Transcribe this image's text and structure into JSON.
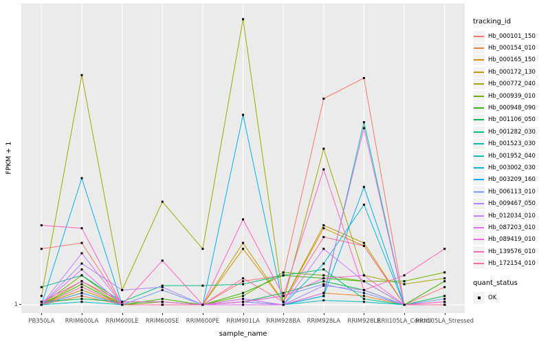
{
  "figure": {
    "y_axis_title": "FPKM + 1",
    "x_axis_title": "sample_name",
    "y_tick_label": "1",
    "legend_tracking_title": "tracking_id",
    "legend_quant_title": "quant_status",
    "quant_ok_label": "OK",
    "colors": {
      "panel_bg": "#EBEBEB",
      "gridline": "#FFFFFF",
      "tick_text": "#4D4D4D",
      "legend_key_bg": "#F2F2F2",
      "point_marker": "#000000"
    }
  },
  "chart_data": {
    "type": "line",
    "title": "",
    "xlabel": "sample_name",
    "ylabel": "FPKM + 1",
    "grid": true,
    "legend_position": "right",
    "point_marker": "filled black square (quant_status = OK at every point)",
    "y_axis_note": "log-like axis; only tick shown is '1' at the baseline; values stored as relative height 0-1 of panel",
    "y_tick_labels": [
      "1"
    ],
    "categories": [
      "PB350LA",
      "RRIM600LA",
      "RRIM600LE",
      "RRIM600SE",
      "RRIM600PE",
      "RRIM901LA",
      "RRIM928BA",
      "RRIM928LA",
      "RRIM928LE",
      "RRII105LA_Control",
      "RRII105LA_Stressed"
    ],
    "series": [
      {
        "name": "Hb_000101_150",
        "color": "#F8766D",
        "values": [
          0.19,
          0.21,
          0.0,
          0.0,
          0.0,
          0.08,
          0.1,
          0.7,
          0.77,
          0.0,
          0.06
        ]
      },
      {
        "name": "Hb_000154_010",
        "color": "#EA8331",
        "values": [
          0.0,
          0.03,
          0.0,
          0.0,
          0.0,
          0.02,
          0.0,
          0.04,
          0.03,
          0.0,
          0.01
        ]
      },
      {
        "name": "Hb_000165_150",
        "color": "#D89000",
        "values": [
          0.0,
          0.05,
          0.0,
          0.0,
          0.0,
          0.19,
          0.01,
          0.26,
          0.2,
          0.0,
          0.0
        ]
      },
      {
        "name": "Hb_000172_130",
        "color": "#C09B00",
        "values": [
          0.0,
          0.08,
          0.0,
          0.0,
          0.0,
          0.21,
          0.01,
          0.27,
          0.21,
          0.0,
          0.0
        ]
      },
      {
        "name": "Hb_000772_040",
        "color": "#A3A500",
        "values": [
          0.03,
          0.78,
          0.05,
          0.35,
          0.19,
          0.97,
          0.01,
          0.53,
          0.1,
          0.07,
          0.09
        ]
      },
      {
        "name": "Hb_000939_010",
        "color": "#6BB100",
        "values": [
          0.0,
          0.1,
          0.0,
          0.01,
          0.0,
          0.03,
          0.11,
          0.1,
          0.08,
          0.08,
          0.11
        ]
      },
      {
        "name": "Hb_000948_090",
        "color": "#39B600",
        "values": [
          0.0,
          0.07,
          0.0,
          0.02,
          0.0,
          0.04,
          0.1,
          0.09,
          0.08,
          0.0,
          0.08
        ]
      },
      {
        "name": "Hb_001106_050",
        "color": "#00BB4E",
        "values": [
          0.01,
          0.02,
          0.01,
          0.01,
          0.0,
          0.01,
          0.04,
          0.08,
          0.05,
          0.0,
          0.03
        ]
      },
      {
        "name": "Hb_001282_030",
        "color": "#00BF7D",
        "values": [
          0.06,
          0.1,
          0.01,
          0.065,
          0.065,
          0.07,
          0.1,
          0.12,
          0.02,
          0.0,
          0.0
        ]
      },
      {
        "name": "Hb_001523_030",
        "color": "#00C1A3",
        "values": [
          0.0,
          0.04,
          0.0,
          0.0,
          0.0,
          0.01,
          0.0,
          0.03,
          0.62,
          0.0,
          0.0
        ]
      },
      {
        "name": "Hb_001952_040",
        "color": "#00C0C2",
        "values": [
          0.0,
          0.01,
          0.0,
          0.0,
          0.0,
          0.0,
          0.0,
          0.015,
          0.01,
          0.0,
          0.0
        ]
      },
      {
        "name": "Hb_003002_030",
        "color": "#00BADE",
        "values": [
          0.0,
          0.04,
          0.0,
          0.0,
          0.0,
          0.01,
          0.0,
          0.14,
          0.34,
          0.0,
          0.0
        ]
      },
      {
        "name": "Hb_003209_160",
        "color": "#00B0F6",
        "values": [
          0.0,
          0.43,
          0.0,
          0.0,
          0.0,
          0.645,
          0.0,
          0.03,
          0.4,
          0.0,
          0.0
        ]
      },
      {
        "name": "Hb_006113_010",
        "color": "#7997FF",
        "values": [
          0.0,
          0.04,
          0.0,
          0.05,
          0.0,
          0.01,
          0.03,
          0.07,
          0.04,
          0.0,
          0.02
        ]
      },
      {
        "name": "Hb_009467_050",
        "color": "#AE87FF",
        "values": [
          0.0,
          0.14,
          0.05,
          0.06,
          0.0,
          0.01,
          0.0,
          0.065,
          0.05,
          0.0,
          0.0
        ]
      },
      {
        "name": "Hb_012034_010",
        "color": "#C77CFF",
        "values": [
          0.0,
          0.175,
          0.0,
          0.0,
          0.0,
          0.02,
          0.0,
          0.19,
          0.08,
          0.0,
          0.0
        ]
      },
      {
        "name": "Hb_087203_010",
        "color": "#E76BF3",
        "values": [
          0.0,
          0.12,
          0.0,
          0.0,
          0.0,
          0.0,
          0.0,
          0.04,
          0.6,
          0.0,
          0.0
        ]
      },
      {
        "name": "Hb_089419_010",
        "color": "#FA62DB",
        "values": [
          0.01,
          0.08,
          0.01,
          0.01,
          0.0,
          0.01,
          0.03,
          0.09,
          0.1,
          0.0,
          0.01
        ]
      },
      {
        "name": "Hb_139576_010",
        "color": "#FF62BC",
        "values": [
          0.27,
          0.26,
          0.0,
          0.15,
          0.0,
          0.29,
          0.03,
          0.46,
          0.05,
          0.1,
          0.19
        ]
      },
      {
        "name": "Hb_172154_010",
        "color": "#FF6A98",
        "values": [
          0.0,
          0.06,
          0.0,
          0.0,
          0.0,
          0.09,
          0.01,
          0.23,
          0.2,
          0.0,
          0.0
        ]
      }
    ]
  }
}
